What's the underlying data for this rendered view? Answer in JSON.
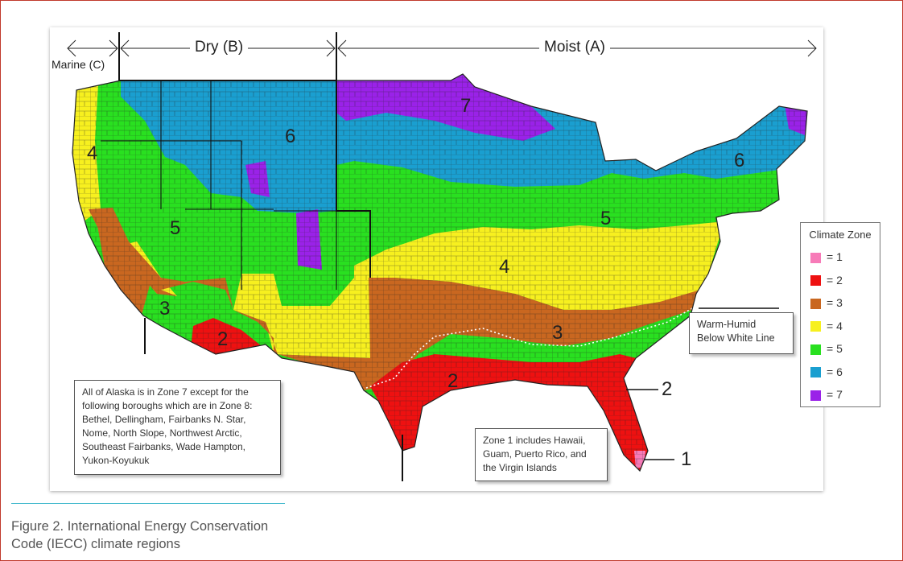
{
  "map": {
    "regions": {
      "marine": "Marine (C)",
      "dry": "Dry (B)",
      "moist": "Moist (A)"
    },
    "zone_labels": {
      "wa_or": "4",
      "great_basin": "5",
      "northern_rockies": "6",
      "minnesota": "7",
      "new_england": "6",
      "midwest": "5",
      "mid_atlantic": "4",
      "california_south": "3",
      "arizona": "2",
      "southeast": "3",
      "gulf": "2",
      "florida_callout": "2",
      "keys_callout": "1"
    },
    "zone_colors": {
      "1": "#f77bb8",
      "2": "#ee1111",
      "3": "#c96720",
      "4": "#f7f01f",
      "5": "#29e020",
      "6": "#1a9fd0",
      "7": "#9a22e8"
    },
    "annotations": {
      "warm_humid": "Warm-Humid\nBelow White Line",
      "alaska": "All of Alaska is in Zone 7 except for the following boroughs which are in Zone 8: Bethel, Dellingham, Fairbanks N. Star, Nome, North Slope, Northwest Arctic, Southeast Fairbanks, Wade Hampton, Yukon-Koyukuk",
      "zone1": "Zone 1 includes Hawaii, Guam, Puerto Rico, and the Virgin Islands"
    }
  },
  "legend": {
    "title": "Climate Zone",
    "items": [
      {
        "label": "= 1",
        "color": "#f77bb8"
      },
      {
        "label": "= 2",
        "color": "#ee1111"
      },
      {
        "label": "= 3",
        "color": "#c96720"
      },
      {
        "label": "= 4",
        "color": "#f7f01f"
      },
      {
        "label": "= 5",
        "color": "#29e020"
      },
      {
        "label": "= 6",
        "color": "#1a9fd0"
      },
      {
        "label": "= 7",
        "color": "#9a22e8"
      }
    ]
  },
  "caption": "Figure 2. International Energy Conservation Code (IECC) climate regions"
}
